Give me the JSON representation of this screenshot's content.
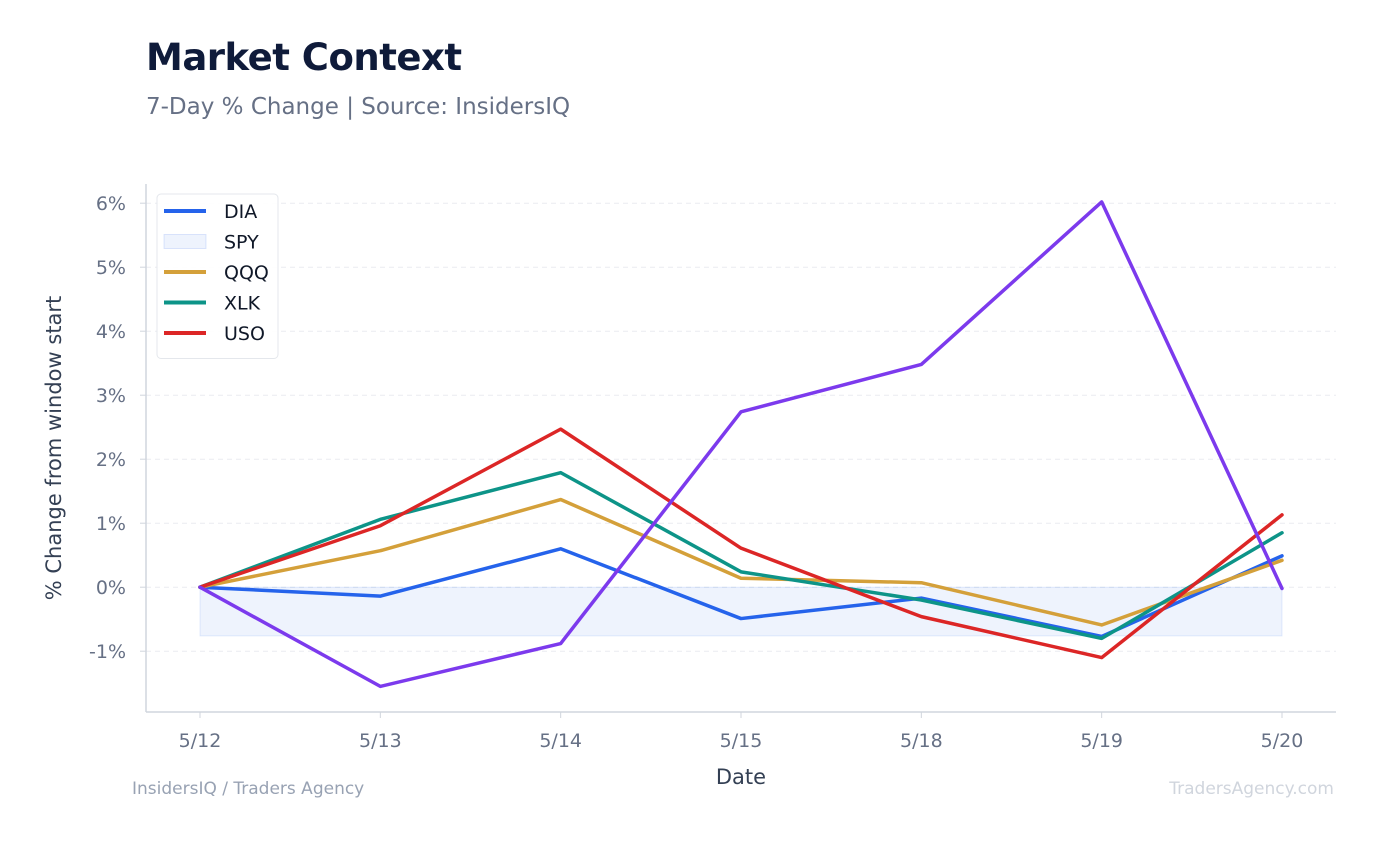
{
  "header": {
    "title": "Market Context",
    "subtitle": "7-Day % Change | Source: InsidersIQ"
  },
  "footer": {
    "left": "InsidersIQ / Traders Agency",
    "right": "TradersAgency.com"
  },
  "chart_data": {
    "type": "line",
    "title": "Market Context",
    "subtitle": "7-Day % Change | Source: InsidersIQ",
    "xlabel": "Date",
    "ylabel": "% Change from window start",
    "categories": [
      "5/12",
      "5/13",
      "5/14",
      "5/15",
      "5/18",
      "5/19",
      "5/20"
    ],
    "y_ticks": [
      -1,
      0,
      1,
      2,
      3,
      4,
      5,
      6
    ],
    "y_tick_labels": [
      "-1%",
      "0%",
      "1%",
      "2%",
      "3%",
      "4%",
      "5%",
      "6%"
    ],
    "ylim": [
      -1.95,
      6.3
    ],
    "grid": true,
    "legend_position": "top-left",
    "series": [
      {
        "name": "DIA",
        "style": "line",
        "color": "#2563eb",
        "values": [
          0.0,
          -0.14,
          0.6,
          -0.49,
          -0.17,
          -0.77,
          0.49
        ]
      },
      {
        "name": "SPY",
        "style": "area",
        "color": "#2563eb",
        "values": [
          -0.76,
          -0.76,
          -0.76,
          -0.76,
          -0.76,
          -0.76,
          -0.76
        ]
      },
      {
        "name": "QQQ",
        "style": "line",
        "color": "#d4a03a",
        "values": [
          0.0,
          0.57,
          1.37,
          0.14,
          0.07,
          -0.59,
          0.42
        ]
      },
      {
        "name": "XLK",
        "style": "line",
        "color": "#0d9488",
        "values": [
          0.0,
          1.06,
          1.79,
          0.24,
          -0.2,
          -0.8,
          0.85
        ]
      },
      {
        "name": "USO",
        "style": "line",
        "color": "#dc2626",
        "values": [
          0.0,
          0.96,
          2.47,
          0.61,
          -0.46,
          -1.1,
          1.13
        ]
      },
      {
        "name": "",
        "style": "line",
        "color": "#7c3aed",
        "values": [
          0.0,
          -1.55,
          -0.88,
          2.74,
          3.48,
          6.02,
          -0.02
        ]
      }
    ]
  }
}
